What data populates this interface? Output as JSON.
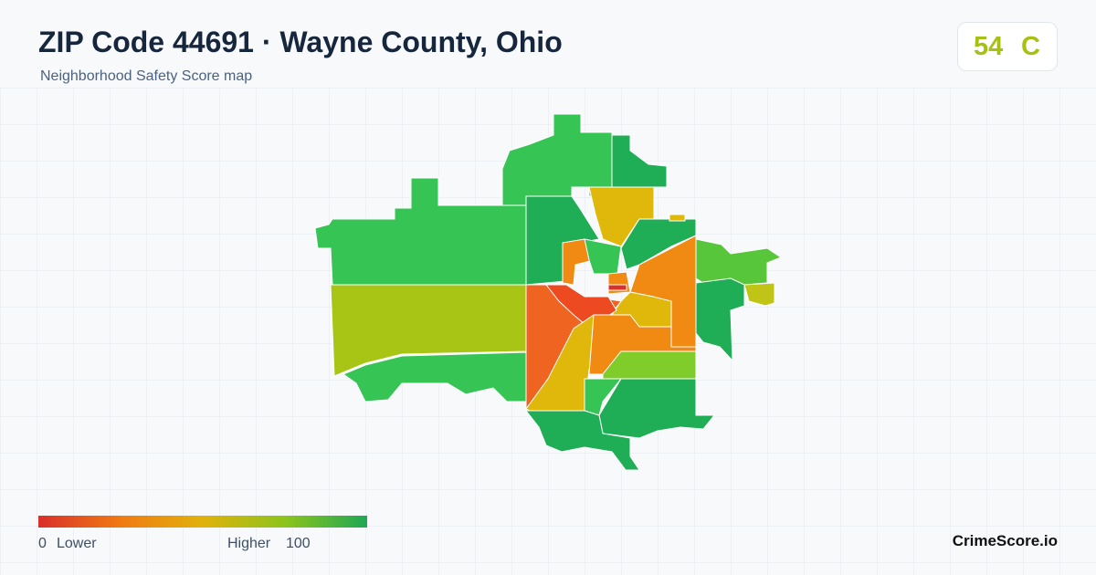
{
  "header": {
    "title": "ZIP Code 44691 · Wayne County, Ohio",
    "subtitle": "Neighborhood Safety Score map"
  },
  "score": {
    "value": 54,
    "grade": "C"
  },
  "legend": {
    "min": 0,
    "min_label": "Lower",
    "max_label": "Higher",
    "max": 100
  },
  "brand": "CrimeScore.io"
}
